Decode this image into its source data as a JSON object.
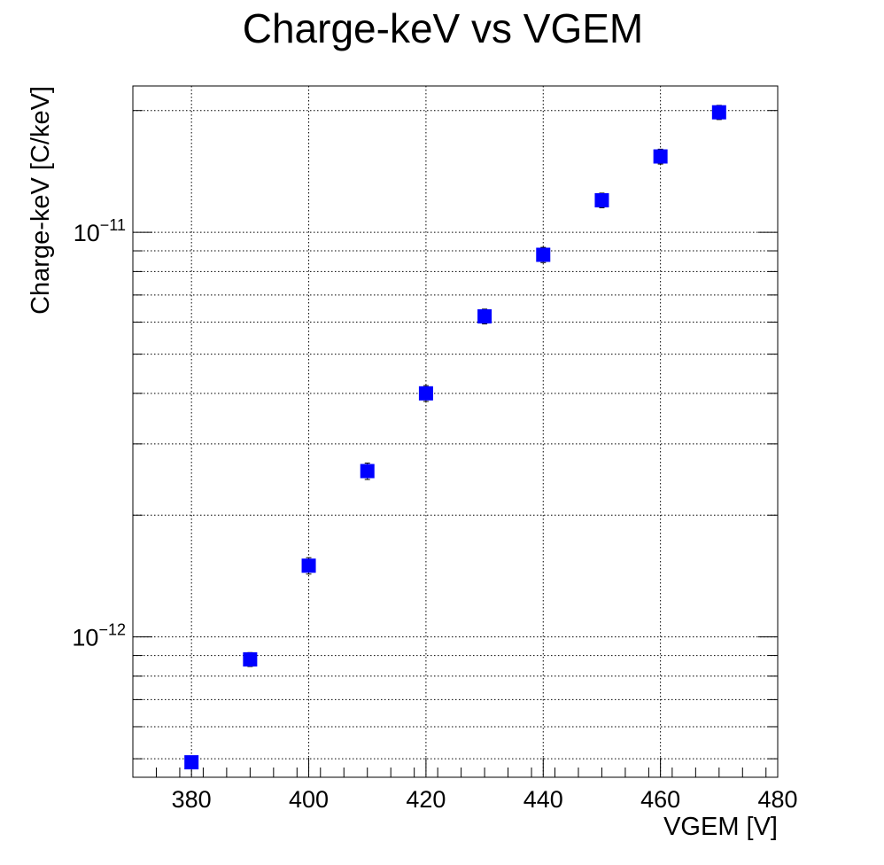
{
  "chart_data": {
    "type": "scatter",
    "title": "Charge-keV vs VGEM",
    "xlabel": "VGEM [V]",
    "ylabel": "Charge-keV [C/keV]",
    "xlim": [
      370,
      480
    ],
    "ylim": [
      4.5e-13,
      2.3e-11
    ],
    "yscale": "log",
    "grid": true,
    "legend": "none",
    "x_ticks": [
      380,
      400,
      420,
      440,
      460,
      480
    ],
    "x_tick_labels": [
      "380",
      "400",
      "420",
      "440",
      "460",
      "480"
    ],
    "y_tick_labels": [
      {
        "value": 1e-11,
        "mantissa": "10",
        "exponent": "−11"
      },
      {
        "value": 1e-12,
        "mantissa": "10",
        "exponent": "−12"
      }
    ],
    "marker_color": "#0000ff",
    "series": [
      {
        "x": [
          380,
          390,
          400,
          410,
          420,
          430,
          440,
          450,
          460,
          470
        ],
        "y": [
          4.9e-13,
          8.8e-13,
          1.5e-12,
          2.57e-12,
          4e-12,
          6.2e-12,
          8.8e-12,
          1.2e-11,
          1.54e-11,
          1.98e-11
        ],
        "yerr": [
          1.5e-14,
          3.5e-14,
          7e-14,
          1.2e-13,
          1.8e-13,
          2.6e-13,
          3.8e-13,
          5e-13,
          6.5e-13,
          8e-13
        ]
      }
    ]
  }
}
